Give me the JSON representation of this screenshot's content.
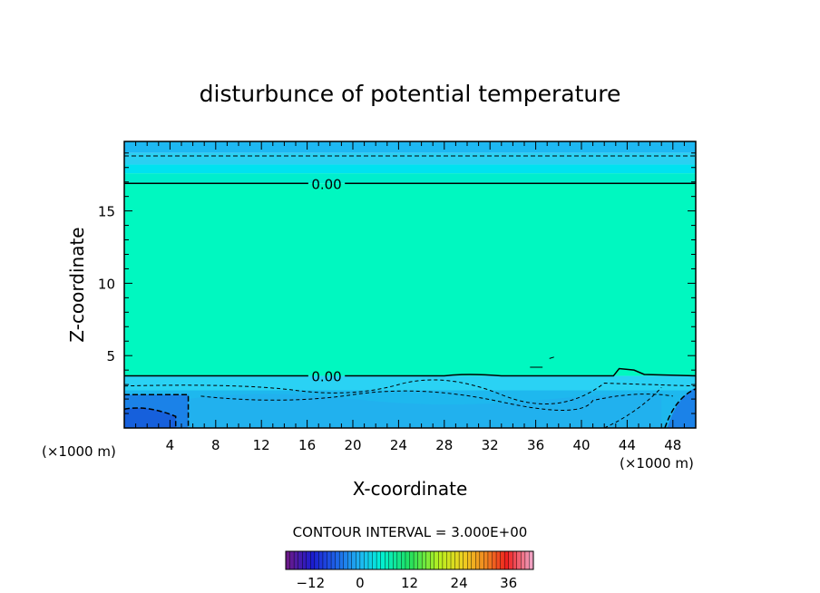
{
  "chart_data": {
    "type": "heatmap",
    "title": "disturbunce of potential temperature",
    "xlabel": "X-coordinate",
    "ylabel": "Z-coordinate",
    "x_unit_left": "(×1000 m)",
    "x_unit_right": "(×1000 m)",
    "xlim": [
      0,
      50
    ],
    "ylim": [
      0,
      19.8
    ],
    "xticks": [
      4,
      8,
      12,
      16,
      20,
      24,
      28,
      32,
      36,
      40,
      44,
      48
    ],
    "yticks": [
      5,
      10,
      15
    ],
    "contour_interval_text": "CONTOUR INTERVAL = 3.000E+00",
    "contour_labels": [
      {
        "text": "0.00",
        "x": 16.8,
        "z": 16.9
      },
      {
        "text": "0.00",
        "x": 16.8,
        "z": 3.6
      }
    ],
    "fill_bands": [
      {
        "z0": 19.0,
        "z1": 19.8,
        "color": "#1eb8f2"
      },
      {
        "z0": 18.2,
        "z1": 19.0,
        "color": "#2ad0f2"
      },
      {
        "z0": 17.6,
        "z1": 18.2,
        "color": "#00e2f0"
      },
      {
        "z0": 16.9,
        "z1": 17.6,
        "color": "#00eecd"
      },
      {
        "z0": 3.6,
        "z1": 16.9,
        "color": "#00f8c0"
      },
      {
        "z0": 2.6,
        "z1": 3.6,
        "color": "#2ad2f4"
      },
      {
        "z0": 0.0,
        "z1": 2.6,
        "color": "#1eb8ee"
      }
    ],
    "colorbar": {
      "ticks": [
        -12,
        0,
        12,
        24,
        36
      ],
      "range": [
        -18,
        42
      ],
      "tick_labels": [
        "−12",
        "0",
        "12",
        "24",
        "36"
      ]
    },
    "grid": false,
    "legend": "colorbar-bottom"
  }
}
